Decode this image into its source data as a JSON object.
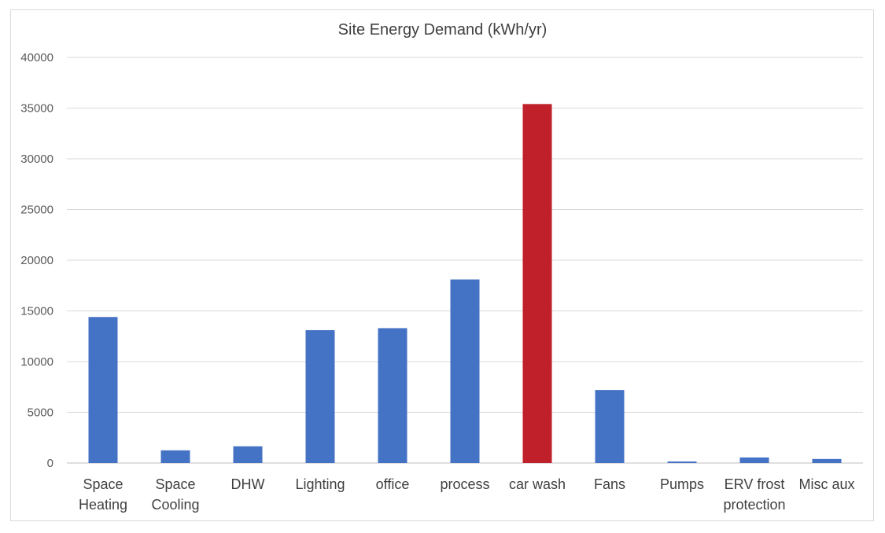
{
  "chart_data": {
    "type": "bar",
    "title": "Site Energy Demand (kWh/yr)",
    "xlabel": "",
    "ylabel": "",
    "ylim": [
      0,
      40000
    ],
    "yticks": [
      "0",
      "5000",
      "10000",
      "15000",
      "20000",
      "25000",
      "30000",
      "35000",
      "40000"
    ],
    "categories": [
      [
        "Space",
        "Heating"
      ],
      [
        "Space",
        "Cooling"
      ],
      [
        "DHW"
      ],
      [
        "Lighting"
      ],
      [
        "office"
      ],
      [
        "process"
      ],
      [
        "car wash"
      ],
      [
        "Fans"
      ],
      [
        "Pumps"
      ],
      [
        "ERV frost",
        "protection"
      ],
      [
        "Misc aux"
      ]
    ],
    "values": [
      14400,
      1250,
      1650,
      13100,
      13300,
      18100,
      35400,
      7200,
      150,
      550,
      400
    ],
    "bar_colors": [
      "#4472c4",
      "#4472c4",
      "#4472c4",
      "#4472c4",
      "#4472c4",
      "#4472c4",
      "#c0202a",
      "#4472c4",
      "#4472c4",
      "#4472c4",
      "#4472c4"
    ],
    "grid": true,
    "legend": "none"
  }
}
